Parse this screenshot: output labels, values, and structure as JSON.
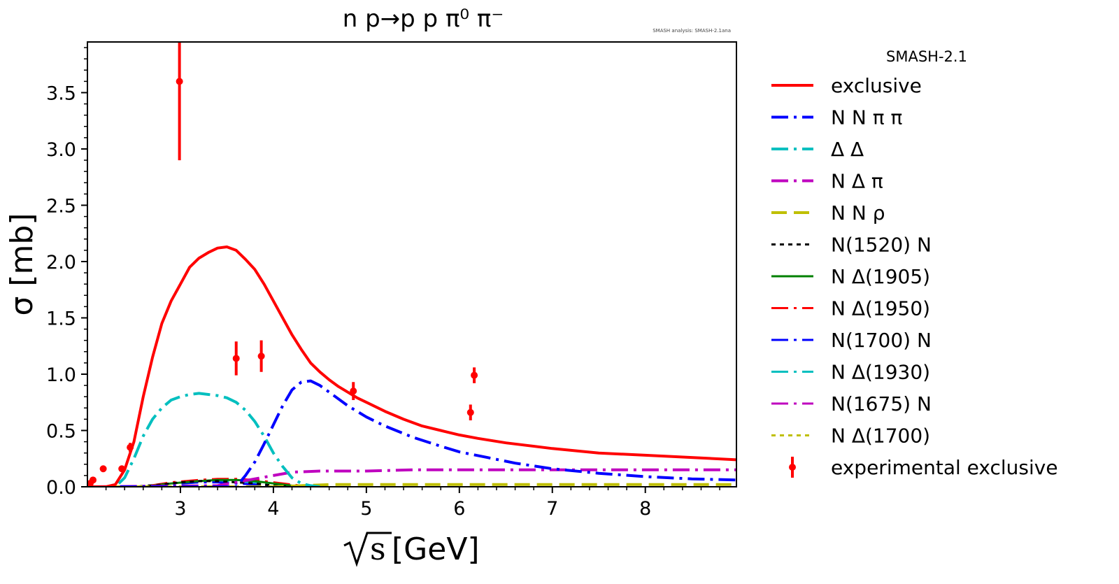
{
  "chart_data": {
    "type": "line",
    "title": "n p→p p π⁰ π⁻",
    "annotation": "SMASH analysis: SMASH-2.1ana",
    "xlabel": "[GeV]",
    "xlabel_sqrt": "s",
    "ylabel": "σ [mb]",
    "xlim": [
      2.0,
      8.98
    ],
    "ylim": [
      0.0,
      3.95
    ],
    "xticks": [
      3,
      4,
      5,
      6,
      7,
      8
    ],
    "yticks": [
      0.0,
      0.5,
      1.0,
      1.5,
      2.0,
      2.5,
      3.0,
      3.5
    ],
    "xtick_labels": [
      "3",
      "4",
      "5",
      "6",
      "7",
      "8"
    ],
    "ytick_labels": [
      "0.0",
      "0.5",
      "1.0",
      "1.5",
      "2.0",
      "2.5",
      "3.0",
      "3.5"
    ],
    "grid": false,
    "legend_title": "SMASH-2.1",
    "legend_position": "right (outside)",
    "series": [
      {
        "name": "exclusive",
        "color": "#ff0000",
        "dash": "solid",
        "width": 4,
        "x": [
          2.02,
          2.2,
          2.3,
          2.4,
          2.5,
          2.6,
          2.7,
          2.8,
          2.9,
          3.0,
          3.1,
          3.2,
          3.3,
          3.4,
          3.5,
          3.6,
          3.7,
          3.8,
          3.9,
          4.0,
          4.1,
          4.2,
          4.3,
          4.4,
          4.5,
          4.6,
          4.7,
          4.8,
          4.9,
          5.0,
          5.2,
          5.4,
          5.6,
          5.8,
          6.0,
          6.2,
          6.5,
          7.0,
          7.5,
          8.0,
          8.5,
          8.98
        ],
        "y": [
          0.0,
          0.0,
          0.02,
          0.15,
          0.4,
          0.8,
          1.15,
          1.45,
          1.65,
          1.8,
          1.95,
          2.03,
          2.08,
          2.12,
          2.13,
          2.1,
          2.02,
          1.93,
          1.8,
          1.65,
          1.5,
          1.35,
          1.22,
          1.1,
          1.02,
          0.95,
          0.89,
          0.84,
          0.79,
          0.75,
          0.67,
          0.6,
          0.54,
          0.5,
          0.46,
          0.43,
          0.39,
          0.34,
          0.3,
          0.28,
          0.26,
          0.24
        ]
      },
      {
        "name": "N N π π",
        "color": "#0000ff",
        "dash": "dashdot",
        "width": 4,
        "x": [
          2.02,
          3.4,
          3.6,
          3.7,
          3.8,
          3.9,
          4.0,
          4.1,
          4.2,
          4.3,
          4.4,
          4.5,
          4.6,
          4.8,
          5.0,
          5.2,
          5.5,
          5.8,
          6.0,
          6.3,
          6.6,
          7.0,
          7.5,
          8.0,
          8.5,
          8.98
        ],
        "y": [
          0.0,
          0.0,
          0.0,
          0.1,
          0.22,
          0.38,
          0.55,
          0.72,
          0.86,
          0.93,
          0.94,
          0.9,
          0.84,
          0.72,
          0.62,
          0.54,
          0.44,
          0.36,
          0.31,
          0.26,
          0.21,
          0.16,
          0.12,
          0.09,
          0.07,
          0.06
        ]
      },
      {
        "name": "Δ Δ",
        "color": "#00bfbf",
        "dash": "dashdot",
        "width": 4,
        "x": [
          2.02,
          2.3,
          2.4,
          2.5,
          2.6,
          2.7,
          2.8,
          2.9,
          3.0,
          3.1,
          3.2,
          3.3,
          3.4,
          3.5,
          3.6,
          3.7,
          3.8,
          3.9,
          4.0,
          4.1,
          4.2,
          4.3,
          4.4,
          4.5
        ],
        "y": [
          0.0,
          0.0,
          0.08,
          0.25,
          0.45,
          0.6,
          0.7,
          0.77,
          0.8,
          0.82,
          0.83,
          0.82,
          0.81,
          0.79,
          0.75,
          0.68,
          0.58,
          0.45,
          0.3,
          0.18,
          0.08,
          0.03,
          0.01,
          0.0
        ]
      },
      {
        "name": "N Δ π",
        "color": "#bf00bf",
        "dash": "dashdot",
        "width": 4,
        "x": [
          2.02,
          3.4,
          3.6,
          3.8,
          4.0,
          4.2,
          4.5,
          5.0,
          5.5,
          6.0,
          6.5,
          7.0,
          7.5,
          8.0,
          8.5,
          8.98
        ],
        "y": [
          0.0,
          0.01,
          0.04,
          0.07,
          0.1,
          0.13,
          0.14,
          0.14,
          0.15,
          0.15,
          0.15,
          0.15,
          0.15,
          0.15,
          0.15,
          0.15
        ]
      },
      {
        "name": "N N ρ",
        "color": "#bfbf00",
        "dash": "dash",
        "width": 4,
        "x": [
          2.02,
          4.0,
          4.3,
          4.6,
          5.0,
          6.0,
          7.0,
          8.0,
          8.98
        ],
        "y": [
          0.0,
          0.0,
          0.01,
          0.02,
          0.02,
          0.02,
          0.02,
          0.02,
          0.02
        ]
      },
      {
        "name": "N(1520) N",
        "color": "#000000",
        "dash": "dot",
        "width": 3,
        "x": [
          2.02,
          2.5,
          2.8,
          3.0,
          3.2,
          3.4,
          3.6,
          3.8,
          4.0,
          4.2
        ],
        "y": [
          0.0,
          0.0,
          0.02,
          0.04,
          0.05,
          0.05,
          0.04,
          0.03,
          0.01,
          0.0
        ]
      },
      {
        "name": "N Δ(1905)",
        "color": "#008000",
        "dash": "solid",
        "width": 3,
        "x": [
          2.02,
          2.6,
          2.9,
          3.2,
          3.4,
          3.6,
          3.8,
          4.0,
          4.2,
          4.4
        ],
        "y": [
          0.0,
          0.0,
          0.03,
          0.05,
          0.06,
          0.06,
          0.05,
          0.03,
          0.01,
          0.0
        ]
      },
      {
        "name": "N Δ(1950)",
        "color": "#ff0000",
        "dash": "dashdot",
        "width": 3,
        "x": [
          2.02,
          2.6,
          2.9,
          3.2,
          3.4,
          3.6,
          3.8,
          4.0,
          4.2,
          4.4
        ],
        "y": [
          0.0,
          0.0,
          0.04,
          0.06,
          0.07,
          0.07,
          0.06,
          0.04,
          0.02,
          0.0
        ]
      },
      {
        "name": "N(1700) N",
        "color": "#0000ff",
        "dash": "dashdot",
        "width": 3,
        "x": [
          2.02,
          2.5,
          2.8,
          3.0,
          3.2,
          3.4,
          3.6,
          3.8,
          4.0,
          4.2
        ],
        "y": [
          0.0,
          0.0,
          0.02,
          0.03,
          0.04,
          0.04,
          0.03,
          0.02,
          0.01,
          0.0
        ]
      },
      {
        "name": "N Δ(1930)",
        "color": "#00bfbf",
        "dash": "dashdot",
        "width": 3,
        "x": [
          2.02,
          2.6,
          2.9,
          3.2,
          3.4,
          3.6,
          3.8,
          4.0,
          4.2,
          4.4
        ],
        "y": [
          0.0,
          0.0,
          0.02,
          0.04,
          0.05,
          0.05,
          0.04,
          0.03,
          0.01,
          0.0
        ]
      },
      {
        "name": "N(1675) N",
        "color": "#bf00bf",
        "dash": "dashdot",
        "width": 3,
        "x": [
          2.02,
          2.5,
          2.8,
          3.0,
          3.2,
          3.4,
          3.6,
          3.8,
          4.0,
          4.2
        ],
        "y": [
          0.0,
          0.0,
          0.02,
          0.03,
          0.04,
          0.04,
          0.03,
          0.02,
          0.01,
          0.0
        ]
      },
      {
        "name": "N Δ(1700)",
        "color": "#bfbf00",
        "dash": "dot",
        "width": 3,
        "x": [
          2.02,
          2.5,
          2.8,
          3.0,
          3.2,
          3.4,
          3.6,
          3.8,
          4.0,
          4.2
        ],
        "y": [
          0.0,
          0.0,
          0.02,
          0.04,
          0.05,
          0.05,
          0.04,
          0.03,
          0.01,
          0.0
        ]
      }
    ],
    "experimental": {
      "name": "experimental exclusive",
      "color": "#ff0000",
      "points": [
        {
          "x": 2.03,
          "y": 0.03,
          "err": 0.01
        },
        {
          "x": 2.06,
          "y": 0.06,
          "err": 0.01
        },
        {
          "x": 2.17,
          "y": 0.16,
          "err": 0.015
        },
        {
          "x": 2.37,
          "y": 0.16,
          "err": 0.015
        },
        {
          "x": 2.46,
          "y": 0.35,
          "err": 0.04
        },
        {
          "x": 2.99,
          "y": 3.6,
          "err": 0.7
        },
        {
          "x": 3.6,
          "y": 1.14,
          "err": 0.15
        },
        {
          "x": 3.87,
          "y": 1.16,
          "err": 0.14
        },
        {
          "x": 4.86,
          "y": 0.85,
          "err": 0.08
        },
        {
          "x": 6.12,
          "y": 0.66,
          "err": 0.07
        },
        {
          "x": 6.16,
          "y": 0.99,
          "err": 0.07
        }
      ]
    }
  }
}
